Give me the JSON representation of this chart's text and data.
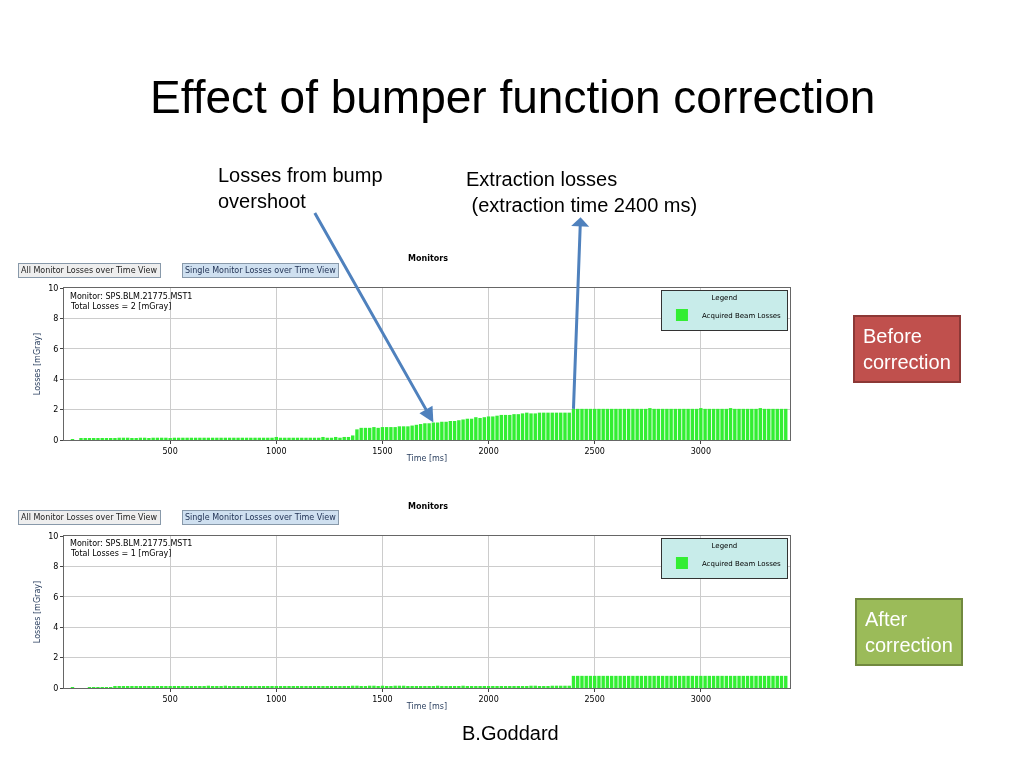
{
  "chart_data": [
    {
      "type": "bar",
      "title": "Effect of bumper function correction",
      "subtitle": "Monitors",
      "xlabel": "Time [ms]",
      "ylabel": "Losses [mGray]",
      "legend_title": "Legend",
      "legend": "top right",
      "grid": true,
      "xlim": [
        0,
        3420
      ],
      "ylim": [
        0,
        10
      ],
      "xticks": [
        500,
        1000,
        1500,
        2000,
        2500,
        3000
      ],
      "yticks": [
        0,
        2,
        4,
        6,
        8,
        10
      ],
      "annotations": [
        "All Monitor Losses over Time View",
        "Single Monitor Losses over Time View",
        "Monitor: SPS.BLM.21775.MST1",
        "Total Losses = 2 [mGray]",
        "Before\ncorrection",
        {
          "text": "Losses from bump\novershoot",
          "x": 1740,
          "y": 1.15
        },
        {
          "text": "Extraction losses\n (extraction time 2400 ms)",
          "x": 2400,
          "y": 2.05
        }
      ],
      "x": [
        40,
        60,
        80,
        100,
        120,
        140,
        160,
        180,
        200,
        220,
        240,
        260,
        280,
        300,
        320,
        340,
        360,
        380,
        400,
        420,
        440,
        460,
        480,
        500,
        520,
        540,
        560,
        580,
        600,
        620,
        640,
        660,
        680,
        700,
        720,
        740,
        760,
        780,
        800,
        820,
        840,
        860,
        880,
        900,
        920,
        940,
        960,
        980,
        1000,
        1020,
        1040,
        1060,
        1080,
        1100,
        1120,
        1140,
        1160,
        1180,
        1200,
        1220,
        1240,
        1260,
        1280,
        1300,
        1320,
        1340,
        1360,
        1380,
        1400,
        1420,
        1440,
        1460,
        1480,
        1500,
        1520,
        1540,
        1560,
        1580,
        1600,
        1620,
        1640,
        1660,
        1680,
        1700,
        1720,
        1740,
        1760,
        1780,
        1800,
        1820,
        1840,
        1860,
        1880,
        1900,
        1920,
        1940,
        1960,
        1980,
        2000,
        2020,
        2040,
        2060,
        2080,
        2100,
        2120,
        2140,
        2160,
        2180,
        2200,
        2220,
        2240,
        2260,
        2280,
        2300,
        2320,
        2340,
        2360,
        2380,
        2400,
        2420,
        2440,
        2460,
        2480,
        2500,
        2520,
        2540,
        2560,
        2580,
        2600,
        2620,
        2640,
        2660,
        2680,
        2700,
        2720,
        2740,
        2760,
        2780,
        2800,
        2820,
        2840,
        2860,
        2880,
        2900,
        2920,
        2940,
        2960,
        2980,
        3000,
        3020,
        3040,
        3060,
        3080,
        3100,
        3120,
        3140,
        3160,
        3180,
        3200,
        3220,
        3240,
        3260,
        3280,
        3300,
        3320,
        3340,
        3360,
        3380,
        3400
      ],
      "series": [
        {
          "name": "Acquired Beam Losses",
          "color": "#33ee33",
          "values": [
            0.05,
            null,
            0.1,
            0.1,
            0.1,
            0.1,
            0.1,
            0.1,
            0.1,
            0.1,
            0.1,
            0.15,
            0.15,
            0.15,
            0.1,
            0.1,
            0.15,
            0.15,
            0.1,
            0.15,
            0.15,
            0.15,
            0.15,
            0.1,
            0.15,
            0.15,
            0.15,
            0.15,
            0.15,
            0.15,
            0.15,
            0.15,
            0.15,
            0.15,
            0.15,
            0.15,
            0.15,
            0.15,
            0.15,
            0.15,
            0.15,
            0.15,
            0.15,
            0.15,
            0.15,
            0.15,
            0.15,
            0.15,
            0.2,
            0.15,
            0.15,
            0.15,
            0.15,
            0.15,
            0.15,
            0.15,
            0.15,
            0.15,
            0.15,
            0.2,
            0.15,
            0.15,
            0.2,
            0.15,
            0.2,
            0.2,
            0.3,
            0.7,
            0.8,
            0.8,
            0.8,
            0.85,
            0.8,
            0.85,
            0.85,
            0.85,
            0.85,
            0.9,
            0.9,
            0.9,
            0.95,
            1.0,
            1.05,
            1.1,
            1.1,
            1.15,
            1.15,
            1.2,
            1.2,
            1.25,
            1.25,
            1.3,
            1.35,
            1.4,
            1.4,
            1.5,
            1.45,
            1.5,
            1.55,
            1.55,
            1.6,
            1.65,
            1.65,
            1.65,
            1.7,
            1.7,
            1.75,
            1.8,
            1.75,
            1.75,
            1.8,
            1.8,
            1.8,
            1.8,
            1.8,
            1.8,
            1.8,
            1.8,
            2.05,
            2.05,
            2.05,
            2.05,
            2.05,
            2.05,
            2.05,
            2.05,
            2.05,
            2.05,
            2.05,
            2.05,
            2.05,
            2.05,
            2.05,
            2.05,
            2.05,
            2.05,
            2.1,
            2.05,
            2.05,
            2.05,
            2.05,
            2.05,
            2.05,
            2.05,
            2.05,
            2.05,
            2.05,
            2.05,
            2.1,
            2.05,
            2.05,
            2.05,
            2.05,
            2.05,
            2.05,
            2.1,
            2.05,
            2.05,
            2.05,
            2.05,
            2.05,
            2.05,
            2.1,
            2.05,
            2.05,
            2.05,
            2.05,
            2.05,
            2.05
          ]
        }
      ]
    },
    {
      "type": "bar",
      "subtitle": "Monitors",
      "xlabel": "Time [ms]",
      "ylabel": "Losses [mGray]",
      "legend_title": "Legend",
      "legend": "top right",
      "grid": true,
      "xlim": [
        0,
        3420
      ],
      "ylim": [
        0,
        10
      ],
      "xticks": [
        500,
        1000,
        1500,
        2000,
        2500,
        3000
      ],
      "yticks": [
        0,
        2,
        4,
        6,
        8,
        10
      ],
      "annotations": [
        "All Monitor Losses over Time View",
        "Single Monitor Losses over Time View",
        "Monitor: SPS.BLM.21775.MST1",
        "Total Losses = 1 [mGray]",
        "After\ncorrection",
        "B.Goddard"
      ],
      "x": [
        40,
        60,
        80,
        100,
        120,
        140,
        160,
        180,
        200,
        220,
        240,
        260,
        280,
        300,
        320,
        340,
        360,
        380,
        400,
        420,
        440,
        460,
        480,
        500,
        520,
        540,
        560,
        580,
        600,
        620,
        640,
        660,
        680,
        700,
        720,
        740,
        760,
        780,
        800,
        820,
        840,
        860,
        880,
        900,
        920,
        940,
        960,
        980,
        1000,
        1020,
        1040,
        1060,
        1080,
        1100,
        1120,
        1140,
        1160,
        1180,
        1200,
        1220,
        1240,
        1260,
        1280,
        1300,
        1320,
        1340,
        1360,
        1380,
        1400,
        1420,
        1440,
        1460,
        1480,
        1500,
        1520,
        1540,
        1560,
        1580,
        1600,
        1620,
        1640,
        1660,
        1680,
        1700,
        1720,
        1740,
        1760,
        1780,
        1800,
        1820,
        1840,
        1860,
        1880,
        1900,
        1920,
        1940,
        1960,
        1980,
        2000,
        2020,
        2040,
        2060,
        2080,
        2100,
        2120,
        2140,
        2160,
        2180,
        2200,
        2220,
        2240,
        2260,
        2280,
        2300,
        2320,
        2340,
        2360,
        2380,
        2400,
        2420,
        2440,
        2460,
        2480,
        2500,
        2520,
        2540,
        2560,
        2580,
        2600,
        2620,
        2640,
        2660,
        2680,
        2700,
        2720,
        2740,
        2760,
        2780,
        2800,
        2820,
        2840,
        2860,
        2880,
        2900,
        2920,
        2940,
        2960,
        2980,
        3000,
        3020,
        3040,
        3060,
        3080,
        3100,
        3120,
        3140,
        3160,
        3180,
        3200,
        3220,
        3240,
        3260,
        3280,
        3300,
        3320,
        3340,
        3360,
        3380,
        3400
      ],
      "series": [
        {
          "name": "Acquired Beam Losses",
          "color": "#33ee33",
          "values": [
            0.05,
            null,
            null,
            null,
            0.05,
            0.05,
            0.05,
            0.05,
            0.05,
            0.05,
            0.1,
            0.1,
            0.1,
            0.1,
            0.1,
            0.1,
            0.1,
            0.1,
            0.1,
            0.1,
            0.1,
            0.1,
            0.1,
            0.1,
            0.1,
            0.1,
            0.1,
            0.1,
            0.1,
            0.1,
            0.1,
            0.1,
            0.15,
            0.1,
            0.1,
            0.1,
            0.15,
            0.1,
            0.1,
            0.1,
            0.1,
            0.1,
            0.1,
            0.1,
            0.1,
            0.1,
            0.1,
            0.1,
            0.1,
            0.1,
            0.1,
            0.1,
            0.1,
            0.1,
            0.1,
            0.1,
            0.1,
            0.1,
            0.1,
            0.1,
            0.1,
            0.1,
            0.1,
            0.1,
            0.1,
            0.1,
            0.15,
            0.15,
            0.1,
            0.1,
            0.15,
            0.15,
            0.1,
            0.15,
            0.1,
            0.1,
            0.15,
            0.15,
            0.15,
            0.1,
            0.1,
            0.1,
            0.1,
            0.1,
            0.1,
            0.1,
            0.15,
            0.1,
            0.1,
            0.1,
            0.1,
            0.1,
            0.15,
            0.1,
            0.1,
            0.1,
            0.1,
            0.1,
            0.1,
            0.1,
            0.1,
            0.1,
            0.1,
            0.1,
            0.1,
            0.1,
            0.1,
            0.1,
            0.15,
            0.15,
            0.1,
            0.1,
            0.1,
            0.15,
            0.15,
            0.15,
            0.15,
            0.15,
            0.8,
            0.8,
            0.8,
            0.8,
            0.8,
            0.8,
            0.8,
            0.8,
            0.8,
            0.8,
            0.8,
            0.8,
            0.8,
            0.8,
            0.8,
            0.8,
            0.8,
            0.8,
            0.8,
            0.8,
            0.8,
            0.8,
            0.8,
            0.8,
            0.8,
            0.8,
            0.8,
            0.8,
            0.8,
            0.8,
            0.8,
            0.8,
            0.8,
            0.8,
            0.8,
            0.8,
            0.8,
            0.8,
            0.8,
            0.8,
            0.8,
            0.8,
            0.8,
            0.8,
            0.8,
            0.8,
            0.8,
            0.8,
            0.8,
            0.8,
            0.8
          ]
        }
      ]
    }
  ]
}
